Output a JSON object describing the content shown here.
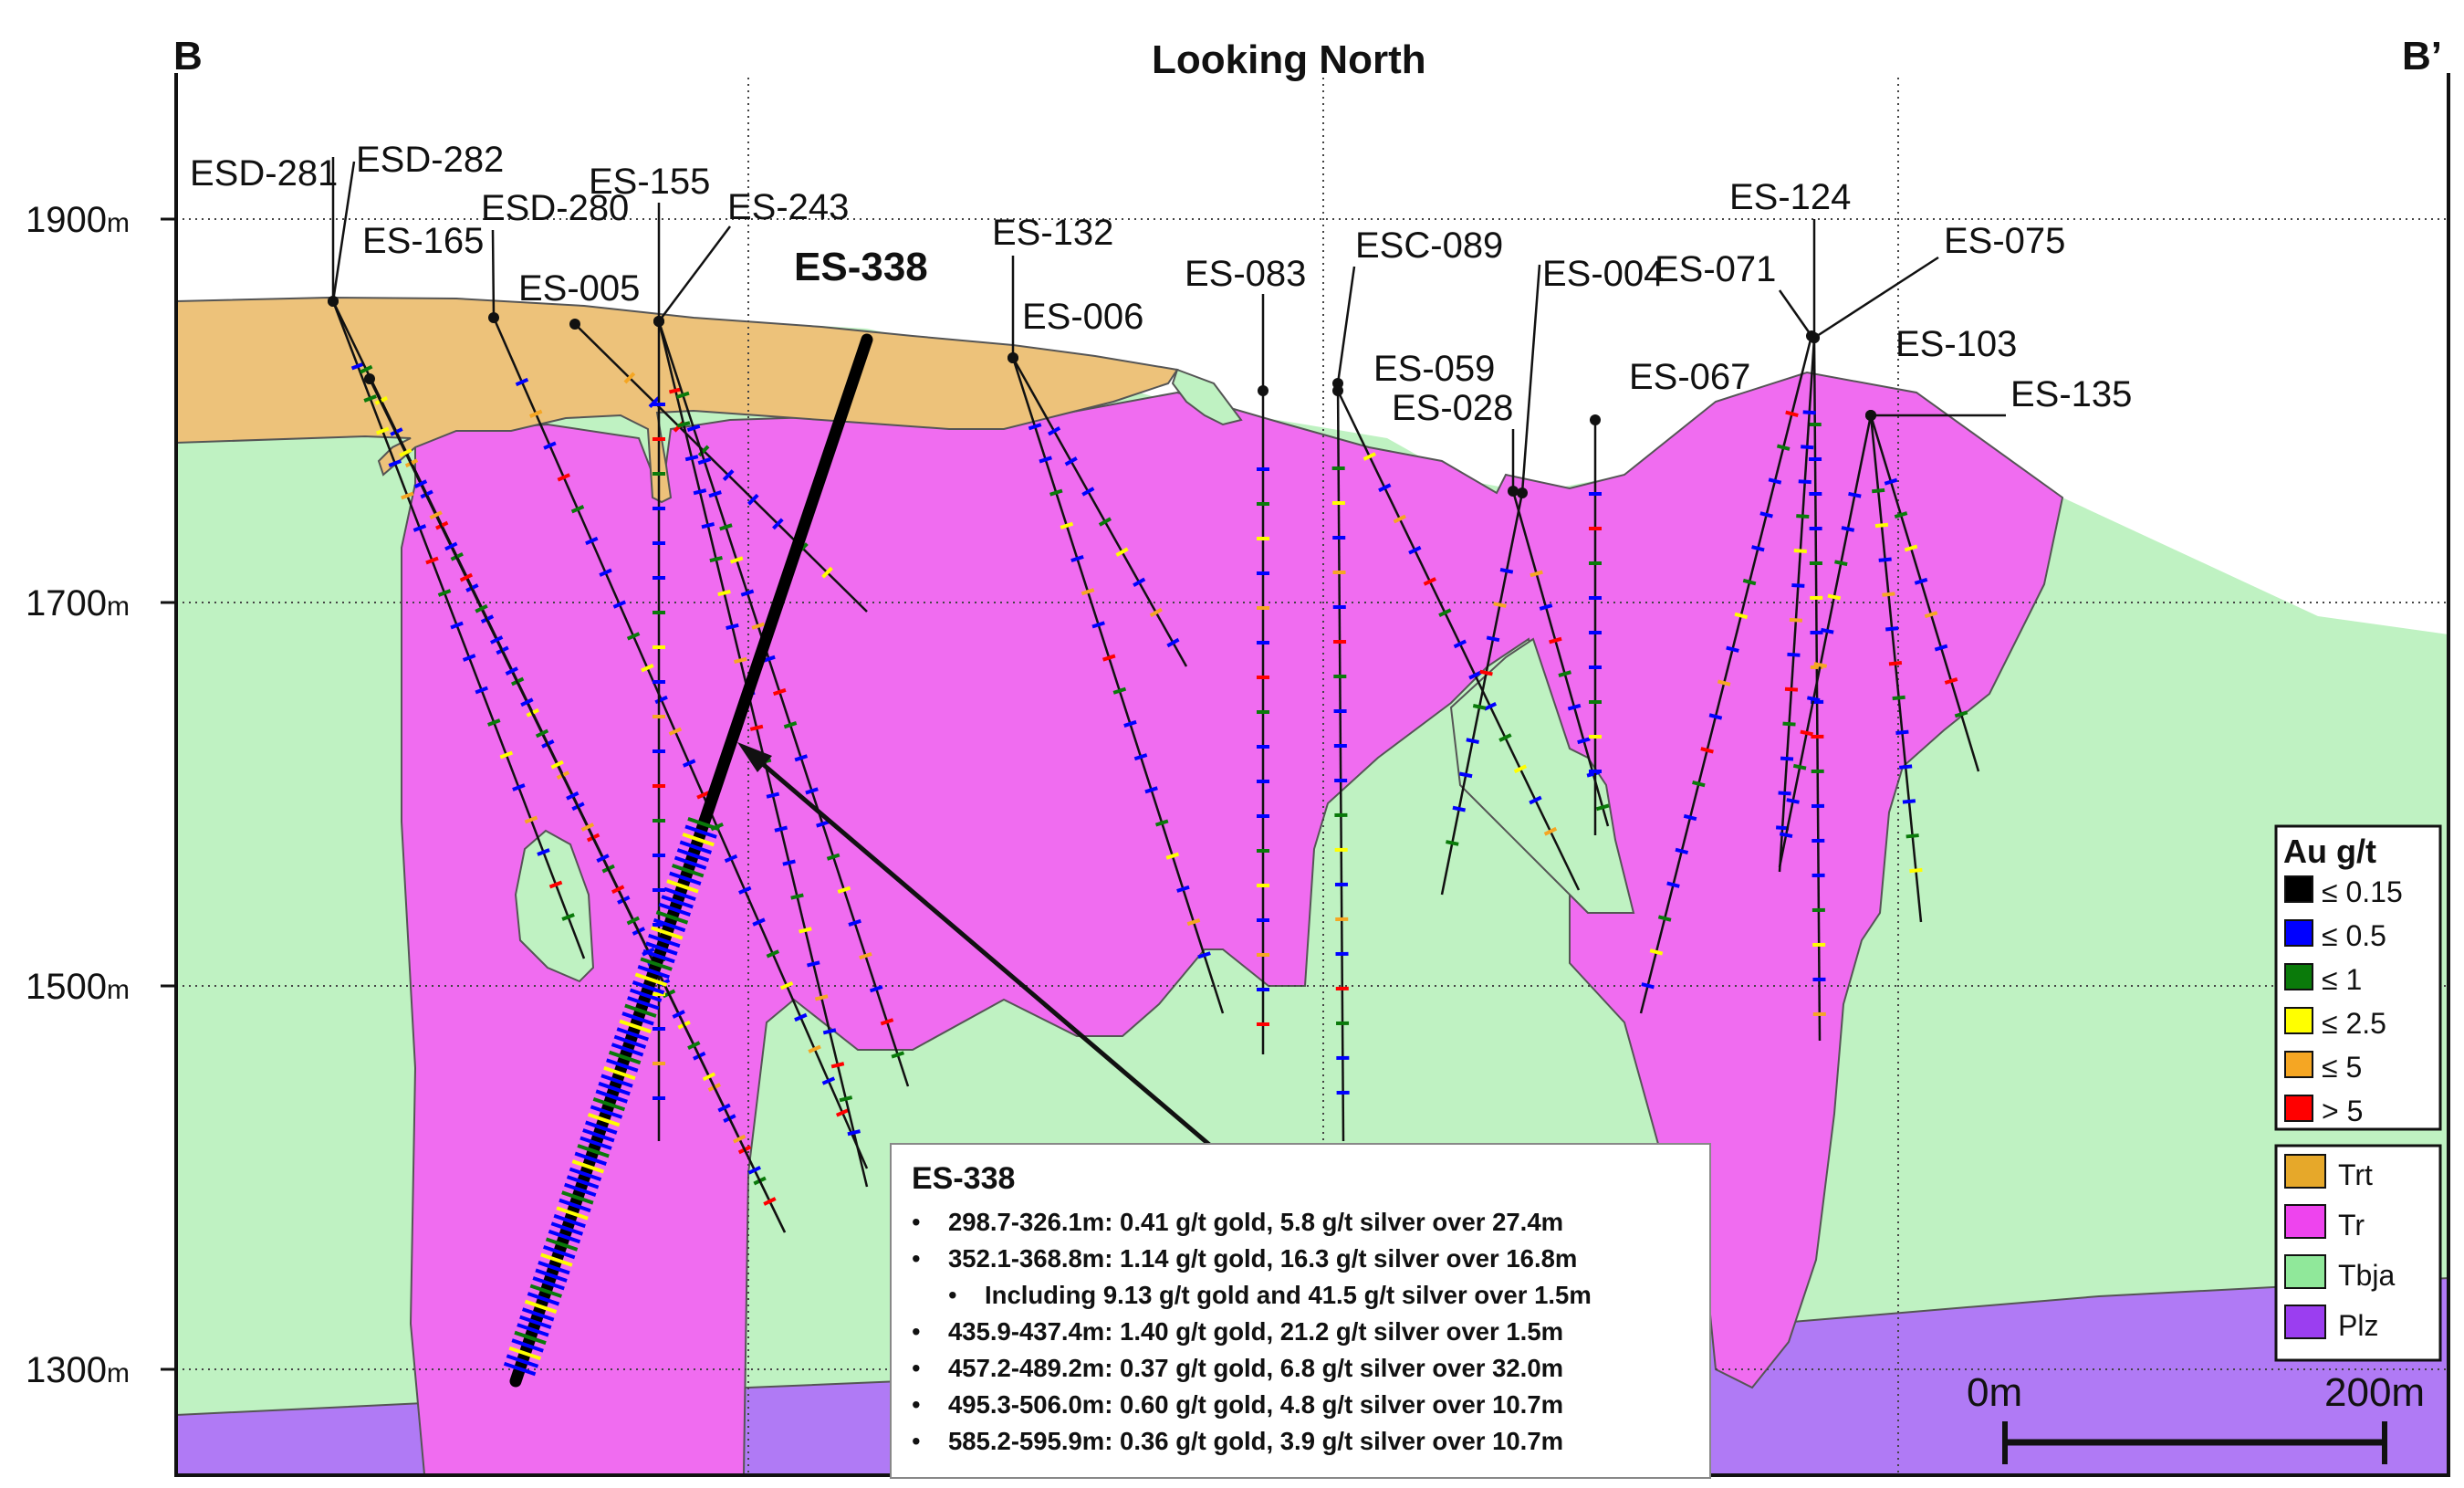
{
  "title": "Looking North",
  "section_start": "B",
  "section_end": "B’",
  "elevation_labels": [
    {
      "value": "1900",
      "unit": "m"
    },
    {
      "value": "1700",
      "unit": "m"
    },
    {
      "value": "1500",
      "unit": "m"
    },
    {
      "value": "1300",
      "unit": "m"
    }
  ],
  "drillholes": [
    "ESD-281",
    "ESD-282",
    "ES-165",
    "ESD-280",
    "ES-155",
    "ES-005",
    "ES-243",
    "ES-338",
    "ES-132",
    "ES-006",
    "ES-083",
    "ESC-089",
    "ES-004",
    "ES-059",
    "ES-028",
    "ES-071",
    "ES-067",
    "ES-124",
    "ES-075",
    "ES-103",
    "ES-135"
  ],
  "highlight_hole": "ES-338",
  "legend_grade": {
    "title": "Au g/t",
    "items": [
      {
        "label": "≤ 0.15",
        "color": "#000000"
      },
      {
        "label": "≤ 0.5",
        "color": "#0000ff"
      },
      {
        "label": "≤ 1",
        "color": "#0a7a0a"
      },
      {
        "label": "≤ 2.5",
        "color": "#ffff00"
      },
      {
        "label": "≤ 5",
        "color": "#f5a623"
      },
      {
        "label": "> 5",
        "color": "#ff0000"
      }
    ]
  },
  "legend_units": {
    "items": [
      {
        "label": "Trt",
        "color": "#e6a82a"
      },
      {
        "label": "Tr",
        "color": "#ee44ee"
      },
      {
        "label": "Tbja",
        "color": "#90e89a"
      },
      {
        "label": "Plz",
        "color": "#9b3ef0"
      }
    ]
  },
  "scale_bar": {
    "start": "0m",
    "end": "200m"
  },
  "callout": {
    "title": "ES-338",
    "lines": [
      "298.7-326.1m: 0.41 g/t gold, 5.8 g/t silver over 27.4m",
      "352.1-368.8m: 1.14 g/t gold, 16.3 g/t silver over 16.8m",
      "Including 9.13 g/t gold and 41.5 g/t silver over 1.5m",
      "435.9-437.4m: 1.40 g/t gold, 21.2 g/t silver over 1.5m",
      "457.2-489.2m: 0.37 g/t gold, 6.8 g/t silver over 32.0m",
      "495.3-506.0m: 0.60 g/t gold, 4.8 g/t silver over 10.7m",
      "585.2-595.9m: 0.36 g/t gold, 3.9 g/t silver over 10.7m"
    ]
  },
  "colors": {
    "trt": "#edc27a",
    "tr": "#f06cf0",
    "tbja": "#bff2c2",
    "plz": "#b07af5"
  }
}
